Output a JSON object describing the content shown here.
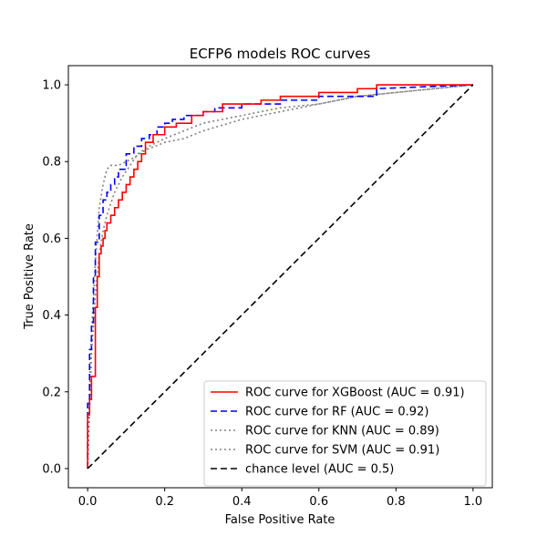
{
  "chart_data": {
    "type": "line",
    "title": "ECFP6 models ROC curves",
    "xlabel": "False Positive Rate",
    "ylabel": "True Positive Rate",
    "xlim": [
      -0.05,
      1.05
    ],
    "ylim": [
      -0.05,
      1.05
    ],
    "xticks": [
      "0.0",
      "0.2",
      "0.4",
      "0.6",
      "0.8",
      "1.0"
    ],
    "yticks": [
      "0.0",
      "0.2",
      "0.4",
      "0.6",
      "0.8",
      "1.0"
    ],
    "grid": false,
    "legend": "lower-right",
    "series": [
      {
        "name": "ROC curve for XGBoost (AUC = 0.91)",
        "color": "#ff0000",
        "style": "solid",
        "x": [
          0,
          0,
          0.005,
          0.005,
          0.01,
          0.01,
          0.02,
          0.02,
          0.025,
          0.025,
          0.03,
          0.03,
          0.035,
          0.035,
          0.04,
          0.04,
          0.045,
          0.045,
          0.05,
          0.05,
          0.06,
          0.06,
          0.07,
          0.07,
          0.08,
          0.08,
          0.09,
          0.09,
          0.1,
          0.1,
          0.11,
          0.11,
          0.12,
          0.12,
          0.13,
          0.13,
          0.14,
          0.14,
          0.15,
          0.15,
          0.17,
          0.17,
          0.2,
          0.2,
          0.23,
          0.23,
          0.27,
          0.27,
          0.3,
          0.3,
          0.35,
          0.35,
          0.45,
          0.45,
          0.5,
          0.5,
          0.6,
          0.6,
          0.7,
          0.7,
          0.75,
          0.75,
          0.8,
          0.8,
          1.0
        ],
        "y": [
          0,
          0.14,
          0.14,
          0.18,
          0.18,
          0.24,
          0.24,
          0.42,
          0.42,
          0.5,
          0.5,
          0.56,
          0.56,
          0.58,
          0.58,
          0.6,
          0.6,
          0.62,
          0.62,
          0.64,
          0.64,
          0.66,
          0.66,
          0.68,
          0.68,
          0.7,
          0.7,
          0.72,
          0.72,
          0.74,
          0.74,
          0.76,
          0.76,
          0.78,
          0.78,
          0.8,
          0.8,
          0.82,
          0.82,
          0.85,
          0.85,
          0.87,
          0.87,
          0.89,
          0.89,
          0.9,
          0.9,
          0.92,
          0.92,
          0.93,
          0.93,
          0.95,
          0.95,
          0.96,
          0.96,
          0.97,
          0.97,
          0.98,
          0.98,
          0.99,
          0.99,
          1.0,
          1.0,
          1.0,
          1.0
        ]
      },
      {
        "name": "ROC curve for RF (AUC = 0.92)",
        "color": "#0000ff",
        "style": "dashed",
        "x": [
          0,
          0,
          0.005,
          0.005,
          0.01,
          0.01,
          0.015,
          0.015,
          0.02,
          0.02,
          0.03,
          0.03,
          0.04,
          0.04,
          0.05,
          0.05,
          0.06,
          0.06,
          0.07,
          0.07,
          0.08,
          0.08,
          0.1,
          0.1,
          0.12,
          0.12,
          0.14,
          0.14,
          0.16,
          0.16,
          0.18,
          0.18,
          0.2,
          0.2,
          0.22,
          0.22,
          0.25,
          0.25,
          0.3,
          0.3,
          0.33,
          0.33,
          0.4,
          0.4,
          0.5,
          0.5,
          0.6,
          0.6,
          0.75,
          0.75,
          1.0
        ],
        "y": [
          0,
          0.17,
          0.17,
          0.31,
          0.31,
          0.38,
          0.38,
          0.5,
          0.5,
          0.59,
          0.59,
          0.66,
          0.66,
          0.7,
          0.7,
          0.72,
          0.72,
          0.74,
          0.74,
          0.76,
          0.76,
          0.78,
          0.78,
          0.82,
          0.82,
          0.84,
          0.84,
          0.86,
          0.86,
          0.87,
          0.87,
          0.89,
          0.89,
          0.9,
          0.9,
          0.91,
          0.91,
          0.92,
          0.92,
          0.93,
          0.93,
          0.94,
          0.94,
          0.95,
          0.95,
          0.96,
          0.96,
          0.97,
          0.97,
          0.99,
          1.0
        ]
      },
      {
        "name": "ROC curve for KNN (AUC = 0.89)",
        "color": "#808080",
        "style": "dotted",
        "x": [
          0,
          0.005,
          0.01,
          0.015,
          0.02,
          0.03,
          0.04,
          0.05,
          0.06,
          0.08,
          0.1,
          0.12,
          0.15,
          0.2,
          0.25,
          0.3,
          0.4,
          0.5,
          0.6,
          0.7,
          0.8,
          0.9,
          1.0
        ],
        "y": [
          0,
          0.2,
          0.36,
          0.44,
          0.54,
          0.68,
          0.74,
          0.78,
          0.79,
          0.79,
          0.8,
          0.81,
          0.83,
          0.85,
          0.86,
          0.88,
          0.91,
          0.93,
          0.95,
          0.97,
          0.98,
          0.99,
          1.0
        ]
      },
      {
        "name": "ROC curve for SVM (AUC = 0.91)",
        "color": "#808080",
        "style": "dotted",
        "x": [
          0,
          0.01,
          0.02,
          0.03,
          0.04,
          0.05,
          0.07,
          0.09,
          0.11,
          0.13,
          0.16,
          0.2,
          0.25,
          0.3,
          0.4,
          0.5,
          0.6,
          0.7,
          0.8,
          0.9,
          1.0
        ],
        "y": [
          0,
          0.3,
          0.45,
          0.56,
          0.62,
          0.66,
          0.72,
          0.76,
          0.79,
          0.82,
          0.84,
          0.86,
          0.88,
          0.9,
          0.92,
          0.94,
          0.95,
          0.97,
          0.98,
          0.99,
          1.0
        ]
      },
      {
        "name": "chance level (AUC = 0.5)",
        "color": "#000000",
        "style": "dashed",
        "x": [
          0,
          1
        ],
        "y": [
          0,
          1
        ]
      }
    ]
  }
}
